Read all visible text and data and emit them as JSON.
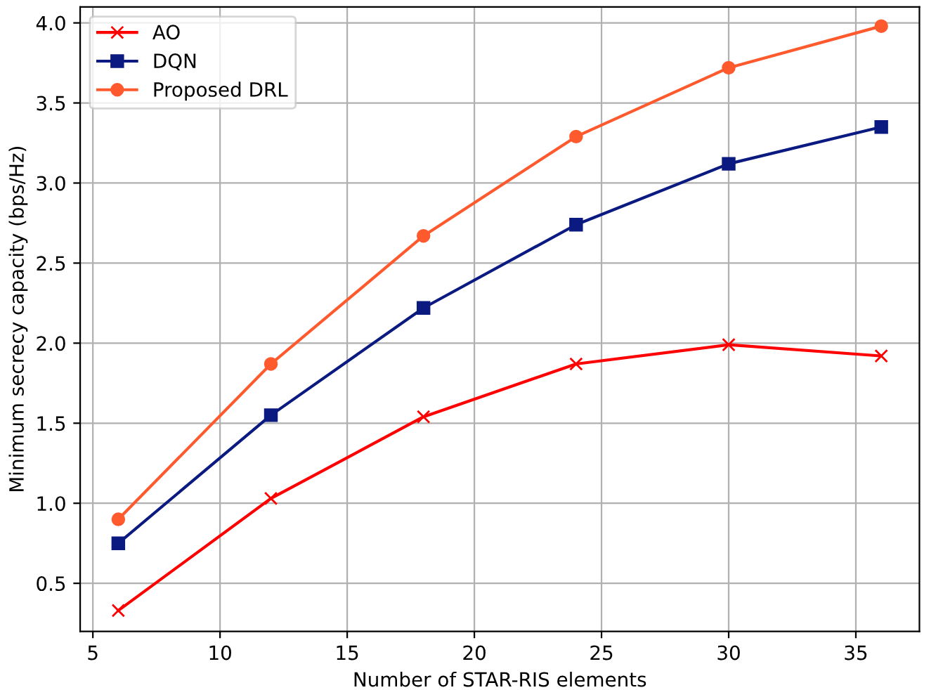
{
  "chart_data": {
    "type": "line",
    "xlabel": "Number of STAR-RIS elements",
    "ylabel": "Minimum secrecy capacity (bps/Hz)",
    "x": [
      6,
      12,
      18,
      24,
      30,
      36
    ],
    "series": [
      {
        "name": "AO",
        "color": "#ff0000",
        "marker": "cross",
        "values": [
          0.33,
          1.03,
          1.54,
          1.87,
          1.99,
          1.92
        ]
      },
      {
        "name": "DQN",
        "color": "#0a1a80",
        "marker": "square",
        "values": [
          0.75,
          1.55,
          2.22,
          2.74,
          3.12,
          3.35
        ]
      },
      {
        "name": "Proposed DRL",
        "color": "#ff5a2e",
        "marker": "circle",
        "values": [
          0.9,
          1.87,
          2.67,
          3.29,
          3.72,
          3.98
        ]
      }
    ],
    "xlim": [
      4.5,
      37.5
    ],
    "xticks": [
      5,
      10,
      15,
      20,
      25,
      30,
      35
    ],
    "ylim": [
      0.2,
      4.1
    ],
    "yticks": [
      0.5,
      {
        "value": 1,
        "label": "1.0"
      },
      1.5,
      {
        "value": 2,
        "label": "2.0"
      },
      2.5,
      {
        "value": 3,
        "label": "3.0"
      },
      3.5,
      {
        "value": 4,
        "label": "4.0"
      }
    ],
    "grid": true,
    "legend": "top left",
    "line_style": "solid"
  }
}
